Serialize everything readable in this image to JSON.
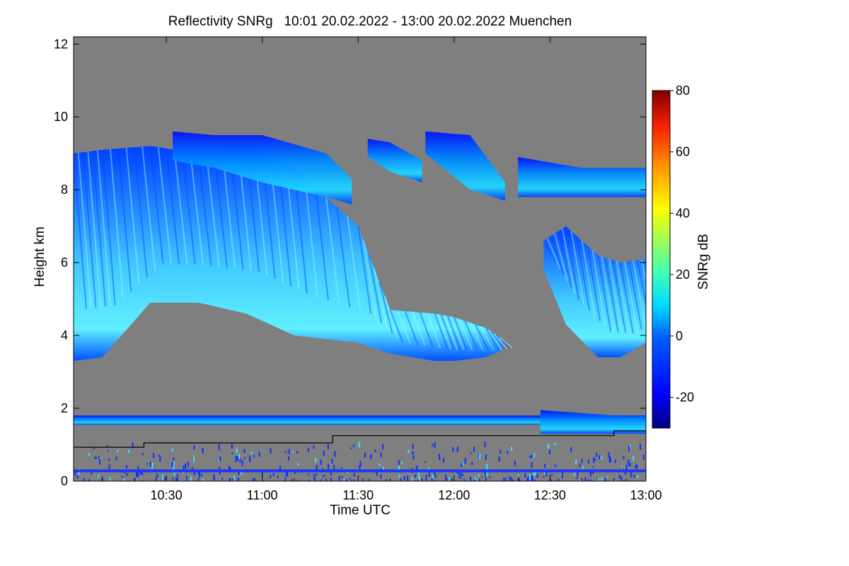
{
  "chart_data": {
    "type": "heatmap",
    "title": "Reflectivity SNRg   10:01 20.02.2022 - 13:00 20.02.2022 Muenchen",
    "xlabel": "Time UTC",
    "ylabel": "Height km",
    "x_range_min_utc": [
      601,
      780
    ],
    "ylim": [
      0,
      12.2
    ],
    "x_ticks": [
      {
        "min": 630,
        "label": "10:30"
      },
      {
        "min": 660,
        "label": "11:00"
      },
      {
        "min": 690,
        "label": "11:30"
      },
      {
        "min": 720,
        "label": "12:00"
      },
      {
        "min": 750,
        "label": "12:30"
      },
      {
        "min": 780,
        "label": "13:00"
      }
    ],
    "y_ticks": [
      0,
      2,
      4,
      6,
      8,
      10,
      12
    ],
    "colorbar": {
      "label": "SNRg dB",
      "range": [
        -30,
        80
      ],
      "ticks": [
        -20,
        0,
        20,
        40,
        60,
        80
      ]
    },
    "colors": {
      "no_data": "#7f7f7f",
      "low": "#0000ff",
      "mid": "#00e8ff",
      "frame": "#000000"
    },
    "cloud_layers": [
      {
        "name": "main_layer",
        "x": [
          601,
          610,
          625,
          640,
          655,
          670,
          690,
          700,
          714,
          720,
          730,
          735
        ],
        "top": [
          9.0,
          9.1,
          9.2,
          9.0,
          9.2,
          8.6,
          7.0,
          4.7,
          4.6,
          4.5,
          4.2,
          3.9
        ],
        "bottom": [
          3.3,
          3.4,
          4.9,
          4.9,
          4.6,
          4.0,
          3.8,
          3.5,
          3.3,
          3.3,
          3.4,
          3.6
        ],
        "snr_core_db": 10
      },
      {
        "name": "upper_left",
        "x": [
          632,
          645,
          660,
          680,
          688
        ],
        "top": [
          9.6,
          9.5,
          9.5,
          9.0,
          8.3
        ],
        "bottom": [
          8.8,
          8.6,
          8.2,
          7.8,
          7.6
        ],
        "snr_core_db": -15
      },
      {
        "name": "upper_mid",
        "x": [
          693,
          700,
          710
        ],
        "top": [
          9.4,
          9.3,
          8.8
        ],
        "bottom": [
          8.9,
          8.5,
          8.2
        ],
        "snr_core_db": -18
      },
      {
        "name": "upper_right_a",
        "x": [
          711,
          725,
          736
        ],
        "top": [
          9.6,
          9.5,
          8.2
        ],
        "bottom": [
          9.0,
          8.0,
          7.7
        ],
        "snr_core_db": -15
      },
      {
        "name": "upper_right_b",
        "x": [
          740,
          760,
          780
        ],
        "top": [
          8.9,
          8.6,
          8.6
        ],
        "bottom": [
          7.8,
          7.8,
          7.8
        ],
        "snr_core_db": -16
      },
      {
        "name": "right_layer",
        "x": [
          748,
          755,
          765,
          772,
          780
        ],
        "top": [
          6.6,
          7.0,
          6.2,
          6.0,
          6.1
        ],
        "bottom": [
          5.8,
          4.3,
          3.4,
          3.4,
          3.8
        ],
        "snr_core_db": 5
      },
      {
        "name": "low_band",
        "x": [
          601,
          780
        ],
        "top": [
          1.8,
          1.8
        ],
        "bottom": [
          1.55,
          1.55
        ],
        "snr_core_db": -18
      },
      {
        "name": "low_cloud_right",
        "x": [
          747,
          770,
          780
        ],
        "top": [
          1.95,
          1.8,
          1.8
        ],
        "bottom": [
          1.3,
          1.3,
          1.3
        ],
        "snr_core_db": -12
      }
    ],
    "boundary_line_km": [
      {
        "x": [
          601,
          623
        ],
        "y": 0.93
      },
      {
        "x": [
          623,
          682
        ],
        "y": 1.05
      },
      {
        "x": [
          682,
          770
        ],
        "y": 1.25
      },
      {
        "x": [
          770,
          780
        ],
        "y": 1.38
      }
    ],
    "surface_clutter_km": [
      0,
      1.1
    ]
  }
}
